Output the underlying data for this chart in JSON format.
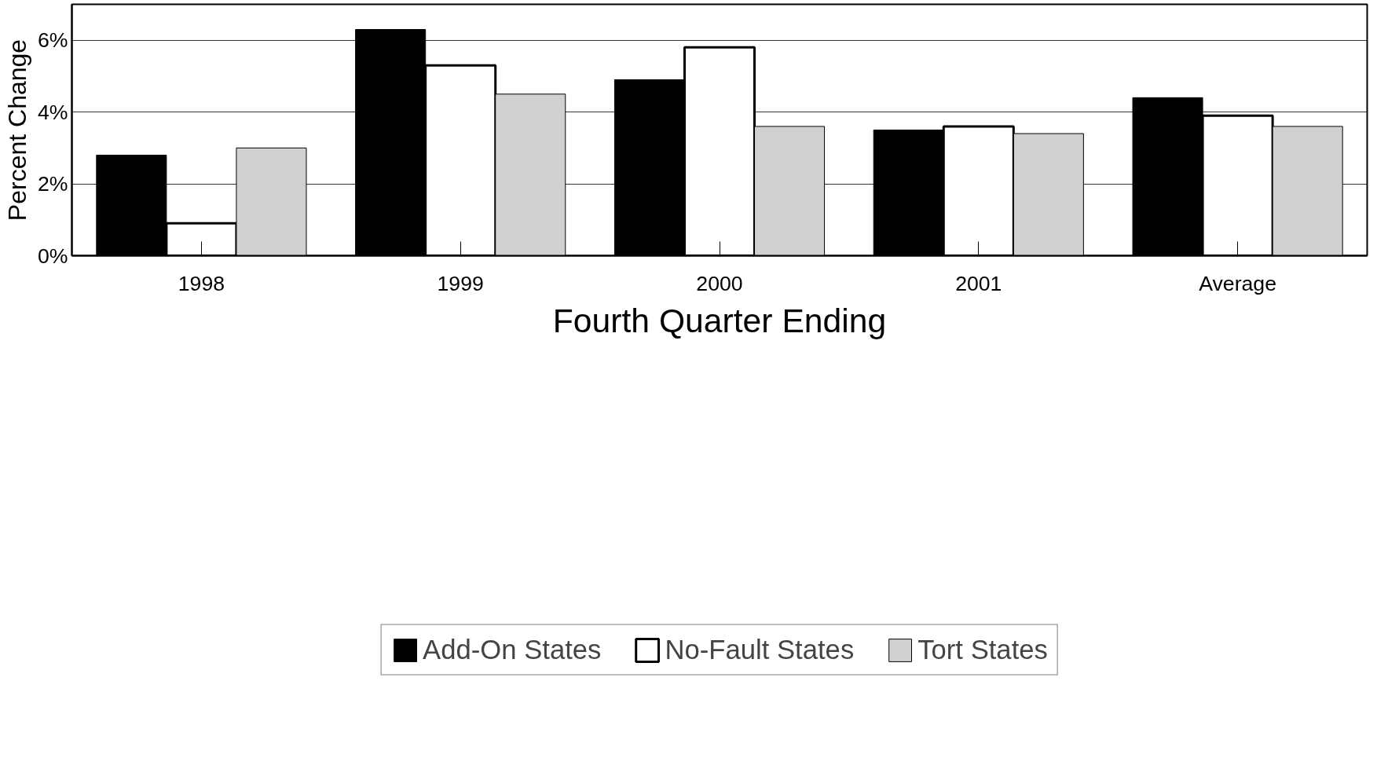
{
  "chart_data": {
    "type": "bar",
    "xlabel": "Fourth Quarter Ending",
    "ylabel": "Percent Change",
    "categories": [
      "1998",
      "1999",
      "2000",
      "2001",
      "Average"
    ],
    "series": [
      {
        "name": "Add-On States",
        "color": "#000000",
        "values": [
          2.8,
          6.3,
          4.9,
          3.5,
          4.4
        ]
      },
      {
        "name": "No-Fault States",
        "color": "#ffffff",
        "values": [
          0.9,
          5.3,
          5.8,
          3.6,
          3.9
        ]
      },
      {
        "name": "Tort States",
        "color": "#d0d0d0",
        "values": [
          3.0,
          4.5,
          3.6,
          3.4,
          3.6
        ]
      }
    ],
    "ylim": [
      0,
      7
    ],
    "yticks": [
      {
        "value": 0,
        "label": "0%"
      },
      {
        "value": 2,
        "label": "2%"
      },
      {
        "value": 4,
        "label": "4%"
      },
      {
        "value": 6,
        "label": "6%"
      }
    ],
    "grid": "y",
    "legend": "bottom"
  }
}
